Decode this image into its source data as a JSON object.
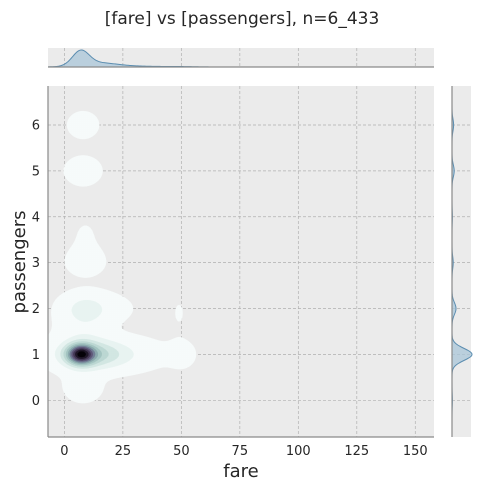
{
  "chart_data": {
    "type": "kde-joint",
    "title": "[fare] vs [passengers], n=6_433",
    "xlabel": "fare",
    "ylabel": "passengers",
    "x_ticks": [
      0,
      25,
      50,
      75,
      100,
      125,
      150
    ],
    "y_ticks": [
      0,
      1,
      2,
      3,
      4,
      5,
      6
    ],
    "xlim": [
      -7,
      158
    ],
    "ylim": [
      -0.8,
      6.85
    ],
    "grid": true,
    "colors": {
      "background": "#ebebeb",
      "grid": "#b0b0b0",
      "marginal_fill": "#a9c6d8",
      "marginal_line": "#5b8db0",
      "contour_levels": [
        "#f6fbfa",
        "#e8f3f1",
        "#d2e6e2",
        "#bcd7d3",
        "#a3c4c1",
        "#8aa9ad",
        "#727f96",
        "#5e5878",
        "#433855",
        "#1f1729",
        "#060308"
      ]
    },
    "density_components": [
      {
        "x": 7,
        "y": 1.0,
        "sx": 4.0,
        "sy": 0.15,
        "w": 1.0
      },
      {
        "x": 11,
        "y": 1.0,
        "sx": 9.0,
        "sy": 0.2,
        "w": 0.38
      },
      {
        "x": 20,
        "y": 1.0,
        "sx": 13.0,
        "sy": 0.22,
        "w": 0.14
      },
      {
        "x": 50,
        "y": 1.0,
        "sx": 4.0,
        "sy": 0.2,
        "w": 0.05
      },
      {
        "x": 9,
        "y": 2.0,
        "sx": 6.0,
        "sy": 0.2,
        "w": 0.17
      },
      {
        "x": 16,
        "y": 2.0,
        "sx": 9.0,
        "sy": 0.22,
        "w": 0.05
      },
      {
        "x": 8,
        "y": 1.5,
        "sx": 7.0,
        "sy": 0.35,
        "w": 0.09
      },
      {
        "x": 9,
        "y": 3.0,
        "sx": 6.0,
        "sy": 0.22,
        "w": 0.045
      },
      {
        "x": 9,
        "y": 3.6,
        "sx": 6.0,
        "sy": 0.4,
        "w": 0.02
      },
      {
        "x": 8,
        "y": 5.0,
        "sx": 5.5,
        "sy": 0.22,
        "w": 0.055
      },
      {
        "x": 8,
        "y": 6.0,
        "sx": 5.0,
        "sy": 0.22,
        "w": 0.045
      },
      {
        "x": 8,
        "y": 0.3,
        "sx": 6.0,
        "sy": 0.25,
        "w": 0.05
      },
      {
        "x": 49,
        "y": 1.9,
        "sx": 3.0,
        "sy": 0.35,
        "w": 0.02
      }
    ],
    "marginal_x": [
      {
        "x": 7,
        "s": 3.5,
        "w": 1.0
      },
      {
        "x": 14,
        "s": 8.0,
        "w": 0.28
      },
      {
        "x": 30,
        "s": 12.0,
        "w": 0.05
      },
      {
        "x": 50,
        "s": 6.0,
        "w": 0.02
      }
    ],
    "marginal_y": [
      {
        "y": 1.0,
        "s": 0.13,
        "w": 1.0
      },
      {
        "y": 2.0,
        "s": 0.13,
        "w": 0.2
      },
      {
        "y": 3.0,
        "s": 0.13,
        "w": 0.06
      },
      {
        "y": 5.0,
        "s": 0.13,
        "w": 0.11
      },
      {
        "y": 6.0,
        "s": 0.13,
        "w": 0.08
      },
      {
        "y": 4.0,
        "s": 0.13,
        "w": 0.02
      },
      {
        "y": 0.0,
        "s": 0.13,
        "w": 0.02
      }
    ]
  }
}
